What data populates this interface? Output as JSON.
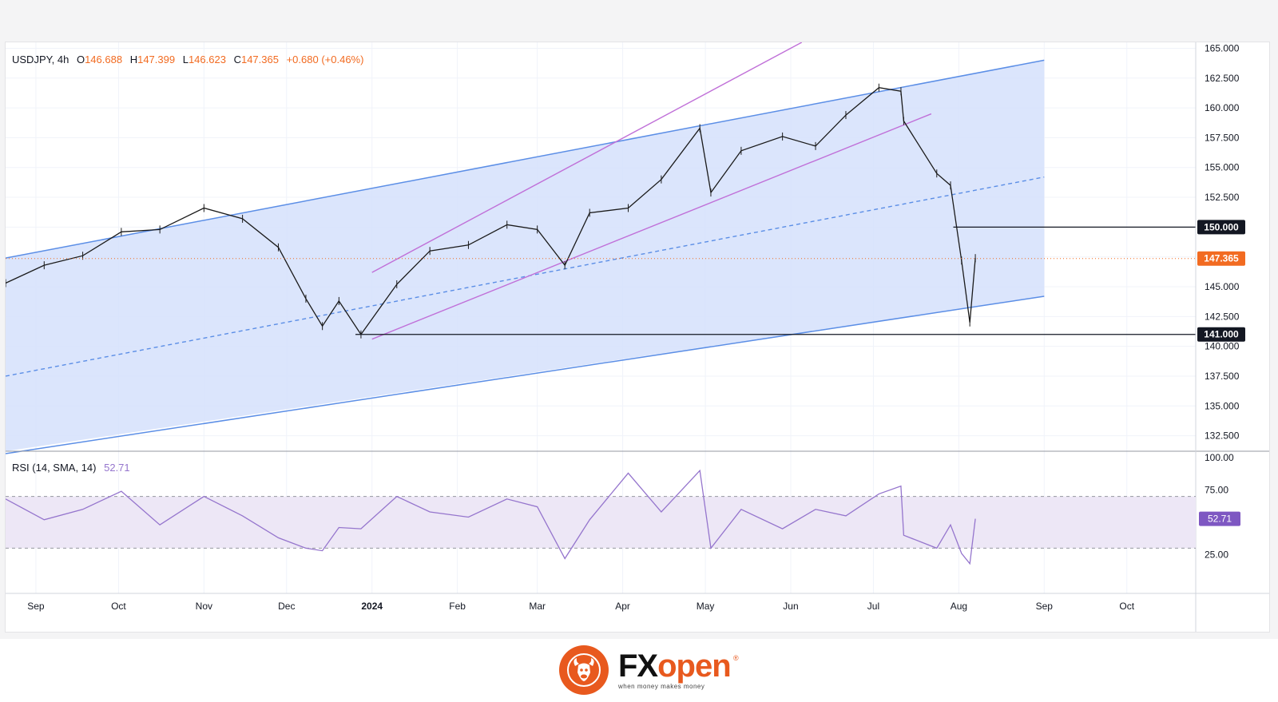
{
  "header": {
    "symbol": "USDJPY",
    "timeframe": "4h",
    "ohlc": [
      {
        "k": "O",
        "v": "146.688"
      },
      {
        "k": "H",
        "v": "147.399"
      },
      {
        "k": "L",
        "v": "146.623"
      },
      {
        "k": "C",
        "v": "147.365"
      }
    ],
    "change": "+0.680 (+0.46%)"
  },
  "rsi_header": {
    "label": "RSI (14, SMA, 14)",
    "value": "52.71"
  },
  "badges": {
    "last_price": "147.365",
    "level_high": "150.000",
    "level_low": "141.000",
    "rsi_value": "52.71"
  },
  "colors": {
    "accent": "#f26b21",
    "candle": "#1a1a1a",
    "channel_fill": "#d5e0fb",
    "channel_line": "#5b8ee6",
    "pitch_line": "#c070d8",
    "rsi_line": "#9575cd",
    "rsi_band": "#ede7f6"
  },
  "footer": {
    "brand_fx": "FX",
    "brand_open": "open",
    "reg": "®",
    "tagline": "when money makes money"
  },
  "chart_data": [
    {
      "type": "line",
      "title": "USDJPY, 4h",
      "x": [
        "2023-08-21",
        "2023-09-04",
        "2023-09-18",
        "2023-10-02",
        "2023-10-16",
        "2023-11-01",
        "2023-11-15",
        "2023-11-28",
        "2023-12-08",
        "2023-12-14",
        "2023-12-20",
        "2023-12-28",
        "2024-01-10",
        "2024-01-22",
        "2024-02-05",
        "2024-02-19",
        "2024-03-01",
        "2024-03-11",
        "2024-03-20",
        "2024-04-03",
        "2024-04-15",
        "2024-04-29",
        "2024-05-03",
        "2024-05-14",
        "2024-05-29",
        "2024-06-10",
        "2024-06-21",
        "2024-07-03",
        "2024-07-11",
        "2024-07-12",
        "2024-07-24",
        "2024-07-29",
        "2024-08-02",
        "2024-08-05",
        "2024-08-07"
      ],
      "series": [
        {
          "values": [
            145.3,
            146.8,
            147.6,
            149.6,
            149.8,
            151.6,
            150.7,
            148.3,
            144.0,
            141.7,
            143.8,
            141.0,
            145.2,
            148.0,
            148.5,
            150.2,
            149.8,
            146.8,
            151.2,
            151.6,
            154.0,
            158.3,
            152.9,
            156.4,
            157.6,
            156.8,
            159.4,
            161.7,
            161.4,
            158.9,
            154.5,
            153.5,
            147.2,
            142.0,
            147.4
          ]
        }
      ],
      "ylim": [
        131.2,
        165.5
      ],
      "yticks": [
        "165.000",
        "162.500",
        "160.000",
        "157.500",
        "155.000",
        "152.500",
        "150.000",
        "147.500",
        "145.000",
        "142.500",
        "140.000",
        "137.500",
        "135.000",
        "132.500"
      ],
      "xticks": [
        "Sep",
        "Oct",
        "Nov",
        "Dec",
        "2024",
        "Feb",
        "Mar",
        "Apr",
        "May",
        "Jun",
        "Jul",
        "Aug",
        "Sep",
        "Oct"
      ],
      "horizontal_levels": [
        150.0,
        141.0
      ],
      "last_price": 147.365,
      "channel": {
        "upper": [
          {
            "x": "2023-08-21",
            "y": 147.4
          },
          {
            "x": "2024-09-01",
            "y": 164.0
          }
        ],
        "lower": [
          {
            "x": "2023-08-21",
            "y": 131.0
          },
          {
            "x": "2024-09-01",
            "y": 144.2
          }
        ],
        "mid": [
          {
            "x": "2023-08-21",
            "y": 137.5
          },
          {
            "x": "2024-09-01",
            "y": 154.2
          }
        ]
      },
      "pitchfork": {
        "upper": [
          {
            "x": "2024-01-01",
            "y": 146.2
          },
          {
            "x": "2024-06-05",
            "y": 165.5
          }
        ],
        "lower": [
          {
            "x": "2024-01-01",
            "y": 140.6
          },
          {
            "x": "2024-07-22",
            "y": 159.5
          }
        ]
      },
      "grid": true
    },
    {
      "type": "line",
      "title": "RSI (14, SMA, 14)",
      "x": [
        "2023-08-21",
        "2023-09-04",
        "2023-09-18",
        "2023-10-02",
        "2023-10-16",
        "2023-11-01",
        "2023-11-15",
        "2023-11-28",
        "2023-12-08",
        "2023-12-14",
        "2023-12-20",
        "2023-12-28",
        "2024-01-10",
        "2024-01-22",
        "2024-02-05",
        "2024-02-19",
        "2024-03-01",
        "2024-03-11",
        "2024-03-20",
        "2024-04-03",
        "2024-04-15",
        "2024-04-29",
        "2024-05-03",
        "2024-05-14",
        "2024-05-29",
        "2024-06-10",
        "2024-06-21",
        "2024-07-03",
        "2024-07-11",
        "2024-07-12",
        "2024-07-24",
        "2024-07-29",
        "2024-08-02",
        "2024-08-05",
        "2024-08-07"
      ],
      "series": [
        {
          "values": [
            68,
            52,
            60,
            74,
            48,
            70,
            55,
            38,
            30,
            28,
            46,
            45,
            70,
            58,
            54,
            68,
            62,
            22,
            52,
            88,
            58,
            90,
            30,
            60,
            45,
            60,
            55,
            72,
            78,
            40,
            30,
            48,
            26,
            18,
            52.71
          ]
        }
      ],
      "ylim": [
        0,
        100
      ],
      "yticks": [
        "100.00",
        "75.00",
        "25.00"
      ],
      "bands": [
        30,
        70
      ],
      "last_value": 52.71,
      "grid": true
    }
  ]
}
